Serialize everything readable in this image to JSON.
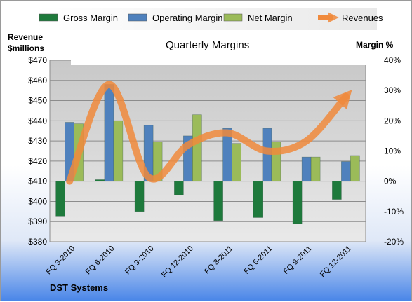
{
  "chart_data": {
    "type": "bar",
    "title": "Quarterly Margins",
    "footer": "DST Systems",
    "categories": [
      "FQ 3-2010",
      "FQ 6-2010",
      "FQ 9-2010",
      "FQ 12-2010",
      "FQ 3-2011",
      "FQ 6-2011",
      "FQ 9-2011",
      "FQ 12-2011"
    ],
    "series": [
      {
        "name": "Gross Margin",
        "type": "bar",
        "axis": "right",
        "color": "#1e7a3c",
        "values": [
          -11.5,
          0.5,
          -10,
          -4.5,
          -13,
          -12,
          -14,
          -6
        ]
      },
      {
        "name": "Operating Margin",
        "type": "bar",
        "axis": "right",
        "color": "#4f81bd",
        "values": [
          19.5,
          32,
          18.5,
          15,
          17.5,
          17.5,
          8,
          6.5
        ]
      },
      {
        "name": "Net Margin",
        "type": "bar",
        "axis": "right",
        "color": "#9bbb59",
        "values": [
          19,
          20,
          13,
          22,
          12.5,
          13,
          8,
          8.5
        ]
      },
      {
        "name": "Revenues",
        "type": "line",
        "axis": "left",
        "color": "#f08a3c",
        "values": [
          410,
          458,
          412,
          428,
          434,
          425,
          430,
          452
        ]
      }
    ],
    "y_left": {
      "label_line1": "Revenue",
      "label_line2": "$millions",
      "min": 380,
      "max": 470,
      "step": 10,
      "prefix": "$"
    },
    "y_right": {
      "label": "Margin %",
      "min": -20,
      "max": 40,
      "step": 10,
      "suffix": "%"
    },
    "legend_position": "top",
    "grid": true
  }
}
